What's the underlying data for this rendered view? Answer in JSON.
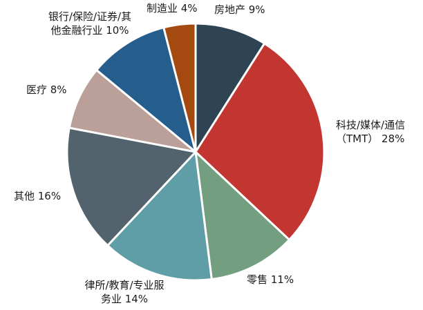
{
  "chart_data": {
    "type": "pie",
    "title": "",
    "slices": [
      {
        "lines": [
          "房地产 9%"
        ],
        "value": 9,
        "color": "#2e4453"
      },
      {
        "lines": [
          "科技/媒体/通信",
          "（TMT） 28%"
        ],
        "value": 28,
        "color": "#c23531"
      },
      {
        "lines": [
          "零售 11%"
        ],
        "value": 11,
        "color": "#739f80"
      },
      {
        "lines": [
          "律所/教育/专业服",
          "务业 14%"
        ],
        "value": 14,
        "color": "#5f9ea7"
      },
      {
        "lines": [
          "其他 16%"
        ],
        "value": 16,
        "color": "#53636e"
      },
      {
        "lines": [
          "医疗 8%"
        ],
        "value": 8,
        "color": "#bba099"
      },
      {
        "lines": [
          "银行/保险/证券/其",
          "他金融行业 10%"
        ],
        "value": 10,
        "color": "#255d8d"
      },
      {
        "lines": [
          "制造业 4%"
        ],
        "value": 4,
        "color": "#a44a10"
      }
    ],
    "start_angle": "12 o'clock",
    "direction": "clockwise",
    "legend": "none"
  }
}
